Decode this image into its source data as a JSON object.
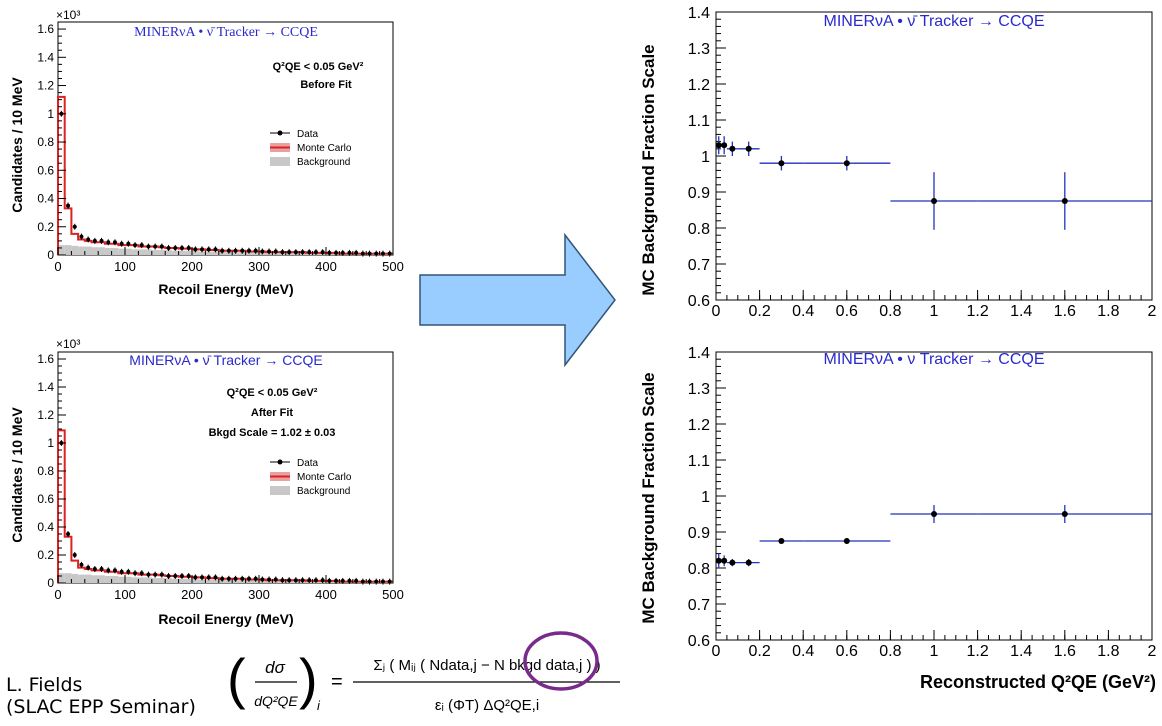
{
  "left_panels": {
    "exp_label": "MINERνA • ν̄ Tracker → CCQE",
    "xlabel": "Recoil Energy (MeV)",
    "ylabel": "Candidates / 10 MeV",
    "y_multiplier": "×10³",
    "x_ticks": [
      "0",
      "100",
      "200",
      "300",
      "400",
      "500"
    ],
    "y_ticks": [
      "0",
      "0.2",
      "0.4",
      "0.6",
      "0.8",
      "1",
      "1.2",
      "1.4",
      "1.6"
    ],
    "legend": [
      {
        "label": "Data",
        "style": "marker"
      },
      {
        "label": "Monte Carlo",
        "style": "line",
        "color": "#dd2222"
      },
      {
        "label": "Background",
        "style": "fill",
        "color": "#c8c8c8"
      }
    ],
    "top": {
      "cut_label": "Q²QE < 0.05 GeV²",
      "state_label": "Before Fit",
      "extra_label": ""
    },
    "bottom": {
      "cut_label": "Q²QE < 0.05 GeV²",
      "state_label": "After Fit",
      "extra_label": "Bkgd Scale = 1.02 ± 0.03"
    }
  },
  "right_panels": {
    "ylabel": "MC Background Fraction Scale",
    "xlabel": "Reconstructed Q²QE (GeV²)",
    "x_ticks": [
      "0",
      "0.2",
      "0.4",
      "0.6",
      "0.8",
      "1",
      "1.2",
      "1.4",
      "1.6",
      "1.8",
      "2"
    ],
    "y_ticks": [
      "0.6",
      "0.7",
      "0.8",
      "0.9",
      "1",
      "1.1",
      "1.2",
      "1.3",
      "1.4"
    ],
    "top_label": "MINERνA • ν̄ Tracker → CCQE",
    "bottom_label": "MINERνA • ν Tracker → CCQE"
  },
  "formula": {
    "lhs_num": "dσ",
    "lhs_den": "dQ²QE",
    "subscript": "i",
    "rhs_num": "Σⱼ ( Mᵢⱼ ( Ndata,j − N bkgd data,j ) )",
    "rhs_den": "εᵢ (ΦT) ΔQ²QE,i"
  },
  "credit": {
    "line1": "L. Fields",
    "line2": "(SLAC EPP Seminar)"
  },
  "arrow_color": "#99ccff",
  "chart_data": [
    {
      "type": "bar",
      "id": "recoil-before-fit",
      "xlabel": "Recoil Energy (MeV)",
      "ylabel": "Candidates / 10 MeV",
      "xlim": [
        0,
        500
      ],
      "ylim": [
        0,
        1.65
      ],
      "y_scale_factor": 1000,
      "x": [
        5,
        15,
        25,
        35,
        45,
        55,
        65,
        75,
        85,
        95,
        105,
        115,
        125,
        135,
        145,
        155,
        165,
        175,
        185,
        195,
        205,
        215,
        225,
        235,
        245,
        255,
        265,
        275,
        285,
        295,
        305,
        315,
        325,
        335,
        345,
        355,
        365,
        375,
        385,
        395,
        405,
        415,
        425,
        435,
        445,
        455,
        465,
        475,
        485,
        495
      ],
      "series": [
        {
          "name": "Data",
          "values": [
            1.0,
            0.35,
            0.2,
            0.13,
            0.11,
            0.1,
            0.1,
            0.09,
            0.09,
            0.08,
            0.08,
            0.07,
            0.07,
            0.06,
            0.06,
            0.06,
            0.05,
            0.05,
            0.05,
            0.05,
            0.04,
            0.04,
            0.04,
            0.04,
            0.03,
            0.03,
            0.03,
            0.03,
            0.03,
            0.03,
            0.025,
            0.025,
            0.025,
            0.02,
            0.02,
            0.02,
            0.02,
            0.02,
            0.02,
            0.02,
            0.015,
            0.015,
            0.015,
            0.015,
            0.015,
            0.01,
            0.01,
            0.01,
            0.01,
            0.01
          ]
        },
        {
          "name": "Monte Carlo",
          "values": [
            1.12,
            0.33,
            0.15,
            0.11,
            0.1,
            0.09,
            0.09,
            0.08,
            0.08,
            0.07,
            0.07,
            0.07,
            0.06,
            0.06,
            0.06,
            0.055,
            0.05,
            0.05,
            0.045,
            0.045,
            0.04,
            0.04,
            0.035,
            0.035,
            0.03,
            0.03,
            0.03,
            0.03,
            0.025,
            0.025,
            0.025,
            0.02,
            0.02,
            0.02,
            0.02,
            0.02,
            0.02,
            0.015,
            0.015,
            0.015,
            0.015,
            0.015,
            0.01,
            0.01,
            0.01,
            0.01,
            0.01,
            0.01,
            0.01,
            0.01
          ]
        },
        {
          "name": "Background",
          "values": [
            0.07,
            0.07,
            0.065,
            0.06,
            0.06,
            0.055,
            0.055,
            0.05,
            0.05,
            0.045,
            0.045,
            0.04,
            0.04,
            0.04,
            0.035,
            0.035,
            0.035,
            0.03,
            0.03,
            0.03,
            0.03,
            0.025,
            0.025,
            0.025,
            0.025,
            0.02,
            0.02,
            0.02,
            0.02,
            0.02,
            0.02,
            0.02,
            0.015,
            0.015,
            0.015,
            0.015,
            0.015,
            0.015,
            0.01,
            0.01,
            0.01,
            0.01,
            0.01,
            0.01,
            0.01,
            0.01,
            0.01,
            0.01,
            0.01,
            0.01
          ]
        }
      ]
    },
    {
      "type": "bar",
      "id": "recoil-after-fit",
      "xlabel": "Recoil Energy (MeV)",
      "ylabel": "Candidates / 10 MeV",
      "xlim": [
        0,
        500
      ],
      "ylim": [
        0,
        1.65
      ],
      "y_scale_factor": 1000,
      "x": [
        5,
        15,
        25,
        35,
        45,
        55,
        65,
        75,
        85,
        95,
        105,
        115,
        125,
        135,
        145,
        155,
        165,
        175,
        185,
        195,
        205,
        215,
        225,
        235,
        245,
        255,
        265,
        275,
        285,
        295,
        305,
        315,
        325,
        335,
        345,
        355,
        365,
        375,
        385,
        395,
        405,
        415,
        425,
        435,
        445,
        455,
        465,
        475,
        485,
        495
      ],
      "series": [
        {
          "name": "Data",
          "values": [
            1.0,
            0.35,
            0.2,
            0.13,
            0.11,
            0.1,
            0.1,
            0.09,
            0.09,
            0.08,
            0.08,
            0.07,
            0.07,
            0.06,
            0.06,
            0.06,
            0.05,
            0.05,
            0.05,
            0.05,
            0.04,
            0.04,
            0.04,
            0.04,
            0.03,
            0.03,
            0.03,
            0.03,
            0.03,
            0.03,
            0.025,
            0.025,
            0.025,
            0.02,
            0.02,
            0.02,
            0.02,
            0.02,
            0.02,
            0.02,
            0.015,
            0.015,
            0.015,
            0.015,
            0.015,
            0.01,
            0.01,
            0.01,
            0.01,
            0.01
          ]
        },
        {
          "name": "Monte Carlo",
          "values": [
            1.09,
            0.33,
            0.16,
            0.11,
            0.1,
            0.09,
            0.09,
            0.08,
            0.08,
            0.07,
            0.07,
            0.07,
            0.06,
            0.06,
            0.06,
            0.055,
            0.05,
            0.05,
            0.045,
            0.045,
            0.04,
            0.04,
            0.035,
            0.035,
            0.03,
            0.03,
            0.03,
            0.03,
            0.025,
            0.025,
            0.025,
            0.02,
            0.02,
            0.02,
            0.02,
            0.02,
            0.02,
            0.015,
            0.015,
            0.015,
            0.015,
            0.015,
            0.01,
            0.01,
            0.01,
            0.01,
            0.01,
            0.01,
            0.01,
            0.01
          ]
        },
        {
          "name": "Background",
          "values": [
            0.07,
            0.07,
            0.065,
            0.06,
            0.06,
            0.055,
            0.055,
            0.05,
            0.05,
            0.045,
            0.045,
            0.04,
            0.04,
            0.04,
            0.035,
            0.035,
            0.035,
            0.03,
            0.03,
            0.03,
            0.03,
            0.025,
            0.025,
            0.025,
            0.025,
            0.02,
            0.02,
            0.02,
            0.02,
            0.02,
            0.02,
            0.02,
            0.015,
            0.015,
            0.015,
            0.015,
            0.015,
            0.015,
            0.01,
            0.01,
            0.01,
            0.01,
            0.01,
            0.01,
            0.01,
            0.01,
            0.01,
            0.01,
            0.01,
            0.01
          ]
        }
      ]
    },
    {
      "type": "scatter",
      "id": "bkg-scale-antineutrino",
      "xlabel": "Reconstructed Q²QE (GeV²)",
      "ylabel": "MC Background Fraction Scale",
      "xlim": [
        0,
        2
      ],
      "ylim": [
        0.6,
        1.4
      ],
      "points": [
        {
          "x": 0.0125,
          "y": 1.03,
          "xerr": 0.0125,
          "yerr": 0.025
        },
        {
          "x": 0.0375,
          "y": 1.03,
          "xerr": 0.0125,
          "yerr": 0.025
        },
        {
          "x": 0.075,
          "y": 1.02,
          "xerr": 0.025,
          "yerr": 0.02
        },
        {
          "x": 0.15,
          "y": 1.02,
          "xerr": 0.05,
          "yerr": 0.02
        },
        {
          "x": 0.3,
          "y": 0.98,
          "xerr": 0.1,
          "yerr": 0.02
        },
        {
          "x": 0.6,
          "y": 0.98,
          "xerr": 0.2,
          "yerr": 0.02
        },
        {
          "x": 1.0,
          "y": 0.875,
          "xerr": 0.2,
          "yerr": 0.08
        },
        {
          "x": 1.6,
          "y": 0.875,
          "xerr": 0.4,
          "yerr": 0.08
        }
      ]
    },
    {
      "type": "scatter",
      "id": "bkg-scale-neutrino",
      "xlabel": "Reconstructed Q²QE (GeV²)",
      "ylabel": "MC Background Fraction Scale",
      "xlim": [
        0,
        2
      ],
      "ylim": [
        0.6,
        1.4
      ],
      "points": [
        {
          "x": 0.0125,
          "y": 0.82,
          "xerr": 0.0125,
          "yerr": 0.02
        },
        {
          "x": 0.0375,
          "y": 0.82,
          "xerr": 0.0125,
          "yerr": 0.015
        },
        {
          "x": 0.075,
          "y": 0.815,
          "xerr": 0.025,
          "yerr": 0.01
        },
        {
          "x": 0.15,
          "y": 0.815,
          "xerr": 0.05,
          "yerr": 0.01
        },
        {
          "x": 0.3,
          "y": 0.875,
          "xerr": 0.1,
          "yerr": 0.008
        },
        {
          "x": 0.6,
          "y": 0.875,
          "xerr": 0.2,
          "yerr": 0.008
        },
        {
          "x": 1.0,
          "y": 0.95,
          "xerr": 0.2,
          "yerr": 0.025
        },
        {
          "x": 1.6,
          "y": 0.95,
          "xerr": 0.4,
          "yerr": 0.025
        }
      ]
    }
  ]
}
